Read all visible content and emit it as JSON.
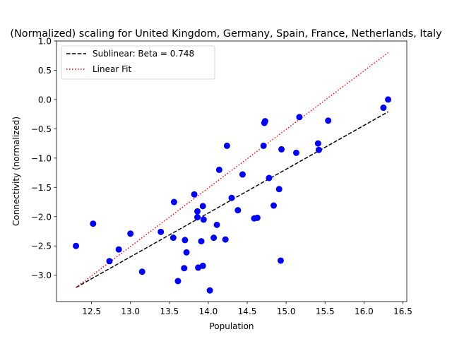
{
  "chart_data": {
    "type": "scatter",
    "title": "(Normalized) scaling for United Kingdom, Germany, Spain, France, Netherlands, Italy",
    "xlabel": "Population",
    "ylabel": "Connectivity (normalized)",
    "xlim": [
      12.05,
      16.55
    ],
    "ylim": [
      -3.45,
      1.0
    ],
    "xticks": [
      12.5,
      13.0,
      13.5,
      14.0,
      14.5,
      15.0,
      15.5,
      16.0,
      16.5
    ],
    "xtick_labels": [
      "12.5",
      "13.0",
      "13.5",
      "14.0",
      "14.5",
      "15.0",
      "15.5",
      "16.0",
      "16.5"
    ],
    "yticks": [
      1.0,
      0.5,
      0.0,
      -0.5,
      -1.0,
      -1.5,
      -2.0,
      -2.5,
      -3.0
    ],
    "ytick_labels": [
      "1.0",
      "0.5",
      "0.0",
      "−0.5",
      "−1.0",
      "−1.5",
      "−2.0",
      "−2.5",
      "−3.0"
    ],
    "grid": false,
    "legend_position": "top-left",
    "points": {
      "color": "#0000ff",
      "x": [
        12.3,
        12.52,
        12.73,
        12.85,
        13.0,
        13.15,
        13.39,
        13.55,
        13.56,
        13.61,
        13.69,
        13.7,
        13.72,
        13.82,
        13.86,
        13.86,
        13.87,
        13.91,
        13.93,
        13.93,
        13.94,
        14.02,
        14.07,
        14.11,
        14.14,
        14.22,
        14.24,
        14.3,
        14.38,
        14.44,
        14.59,
        14.63,
        14.71,
        14.72,
        14.73,
        14.78,
        14.84,
        14.91,
        14.93,
        14.94,
        15.13,
        15.17,
        15.41,
        15.42,
        15.54,
        16.25,
        16.31
      ],
      "y": [
        -2.5,
        -2.12,
        -2.76,
        -2.56,
        -2.29,
        -2.94,
        -2.26,
        -2.36,
        -1.75,
        -3.1,
        -2.88,
        -2.4,
        -2.61,
        -1.62,
        -2.01,
        -1.91,
        -2.87,
        -2.42,
        -1.82,
        -2.84,
        -2.05,
        -3.26,
        -2.36,
        -2.14,
        -1.2,
        -2.39,
        -0.79,
        -1.68,
        -1.89,
        -1.28,
        -2.03,
        -2.02,
        -0.79,
        -0.4,
        -0.37,
        -1.34,
        -1.81,
        -1.53,
        -2.75,
        -0.85,
        -0.91,
        -0.3,
        -0.75,
        -0.86,
        -0.36,
        -0.14,
        0.0
      ]
    },
    "series": [
      {
        "name": "Sublinear: Beta = 0.748",
        "color": "#000000",
        "style": "dashed",
        "x": [
          12.3,
          16.31
        ],
        "y": [
          -3.21,
          -0.21
        ]
      },
      {
        "name": "Linear Fit",
        "color": "#ff0000",
        "style": "dotted",
        "x": [
          12.3,
          16.31
        ],
        "y": [
          -3.21,
          0.8
        ]
      }
    ]
  }
}
